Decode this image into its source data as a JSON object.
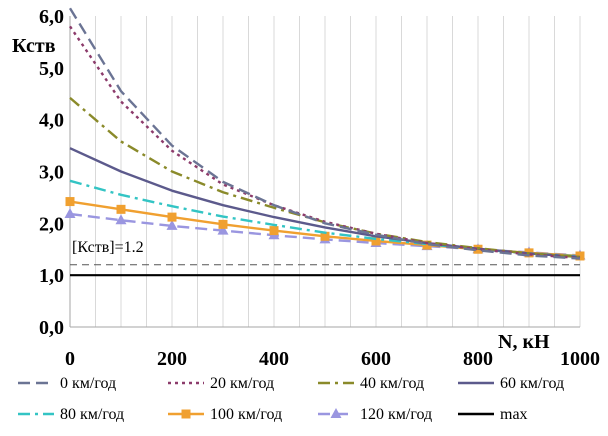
{
  "chart_data": {
    "type": "line",
    "title": "",
    "xlabel": "N, кН",
    "ylabel": "Кств",
    "xlim": [
      0,
      1000
    ],
    "ylim": [
      0,
      6
    ],
    "x_ticks": [
      0,
      200,
      400,
      600,
      800,
      1000
    ],
    "x_tick_labels": [
      "0",
      "200",
      "400",
      "600",
      "800",
      "1000"
    ],
    "y_ticks": [
      0,
      1,
      2,
      3,
      4,
      5,
      6
    ],
    "y_tick_labels": [
      "0,0",
      "1,0",
      "2,0",
      "3,0",
      "4,0",
      "5,0",
      "6,0"
    ],
    "grid": "vertical-minor",
    "legend_position": "bottom",
    "annotation": "[Кств]=1.2",
    "series": [
      {
        "name": "0 км/год",
        "color": "#6b7494",
        "dash": "long-dash",
        "marker": "none",
        "x": [
          0,
          100,
          200,
          300,
          400,
          500,
          600,
          700,
          800,
          900,
          1000
        ],
        "y": [
          6.15,
          4.55,
          3.5,
          2.8,
          2.35,
          2.0,
          1.78,
          1.6,
          1.48,
          1.38,
          1.32
        ]
      },
      {
        "name": "20 км/год",
        "color": "#8c3b6b",
        "dash": "dot",
        "marker": "none",
        "x": [
          0,
          100,
          200,
          300,
          400,
          500,
          600,
          700,
          800,
          900,
          1000
        ],
        "y": [
          5.8,
          4.35,
          3.4,
          2.75,
          2.35,
          2.03,
          1.8,
          1.62,
          1.5,
          1.4,
          1.33
        ]
      },
      {
        "name": "40 км/год",
        "color": "#8a8a2a",
        "dash": "dash-dot",
        "marker": "none",
        "x": [
          0,
          100,
          200,
          300,
          400,
          500,
          600,
          700,
          800,
          900,
          1000
        ],
        "y": [
          4.42,
          3.58,
          3.0,
          2.6,
          2.3,
          2.02,
          1.8,
          1.64,
          1.52,
          1.42,
          1.35
        ]
      },
      {
        "name": "60 км/год",
        "color": "#5c5a8c",
        "dash": "solid",
        "marker": "none",
        "x": [
          0,
          100,
          200,
          300,
          400,
          500,
          600,
          700,
          800,
          900,
          1000
        ],
        "y": [
          3.45,
          3.0,
          2.63,
          2.35,
          2.12,
          1.92,
          1.75,
          1.62,
          1.51,
          1.42,
          1.35
        ]
      },
      {
        "name": "80 км/год",
        "color": "#33c4c4",
        "dash": "dash-dot",
        "marker": "none",
        "x": [
          0,
          100,
          200,
          300,
          400,
          500,
          600,
          700,
          800,
          900,
          1000
        ],
        "y": [
          2.82,
          2.55,
          2.33,
          2.13,
          1.97,
          1.82,
          1.7,
          1.6,
          1.5,
          1.42,
          1.36
        ]
      },
      {
        "name": "100 км/год",
        "color": "#f0a030",
        "dash": "solid",
        "marker": "square",
        "x": [
          0,
          100,
          200,
          300,
          400,
          500,
          600,
          700,
          800,
          900,
          1000
        ],
        "y": [
          2.42,
          2.27,
          2.12,
          1.98,
          1.86,
          1.75,
          1.66,
          1.58,
          1.5,
          1.43,
          1.37
        ]
      },
      {
        "name": "120 км/год",
        "color": "#9a96e0",
        "dash": "long-dash",
        "marker": "triangle",
        "x": [
          0,
          100,
          200,
          300,
          400,
          500,
          600,
          700,
          800,
          900,
          1000
        ],
        "y": [
          2.18,
          2.06,
          1.95,
          1.86,
          1.77,
          1.69,
          1.62,
          1.56,
          1.5,
          1.44,
          1.38
        ]
      },
      {
        "name": "max",
        "color": "#000000",
        "dash": "solid",
        "marker": "none",
        "x": [
          0,
          1000
        ],
        "y": [
          1.0,
          1.0
        ]
      }
    ],
    "reference_line": {
      "y": 1.2,
      "color": "#555555",
      "dash": "dash"
    }
  }
}
